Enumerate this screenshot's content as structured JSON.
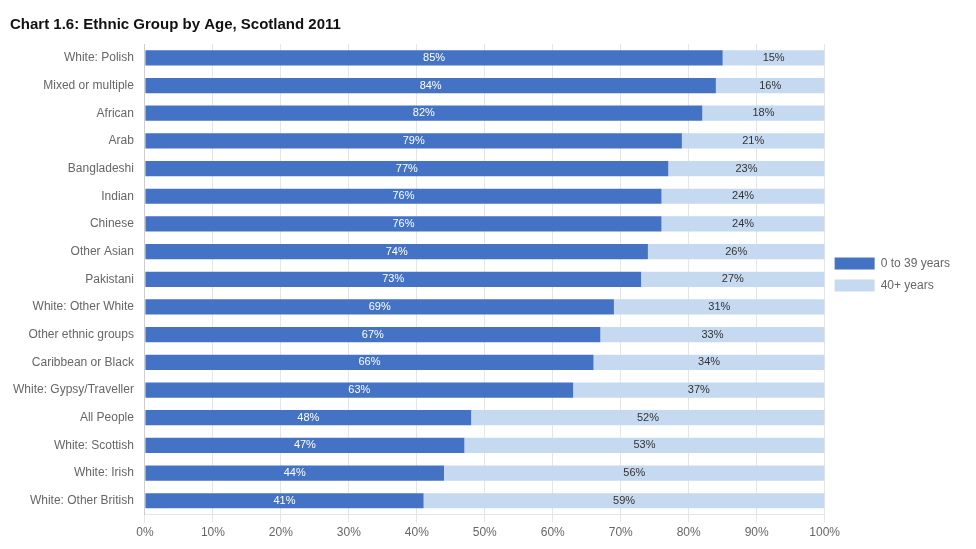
{
  "chart_data": {
    "type": "bar",
    "title": "Chart 1.6: Ethnic Group by Age, Scotland 2011",
    "orientation": "horizontal",
    "stacked": true,
    "categories": [
      "White: Polish",
      "Mixed or multiple",
      "African",
      "Arab",
      "Bangladeshi",
      "Indian",
      "Chinese",
      "Other Asian",
      "Pakistani",
      "White: Other White",
      "Other ethnic groups",
      "Caribbean or Black",
      "White: Gypsy/Traveller",
      "All People",
      "White: Scottish",
      "White: Irish",
      "White: Other British"
    ],
    "series": [
      {
        "name": "0 to 39 years",
        "color": "#4472C4",
        "values": [
          85,
          84,
          82,
          79,
          77,
          76,
          76,
          74,
          73,
          69,
          67,
          66,
          63,
          48,
          47,
          44,
          41
        ],
        "value_labels": [
          "85%",
          "84%",
          "82%",
          "79%",
          "77%",
          "76%",
          "76%",
          "74%",
          "73%",
          "69%",
          "67%",
          "66%",
          "63%",
          "48%",
          "47%",
          "44%",
          "41%"
        ]
      },
      {
        "name": "40+ years",
        "color": "#C5D9F1",
        "values": [
          15,
          16,
          18,
          21,
          23,
          24,
          24,
          26,
          27,
          31,
          33,
          34,
          37,
          52,
          53,
          56,
          59
        ],
        "value_labels": [
          "15%",
          "16%",
          "18%",
          "21%",
          "23%",
          "24%",
          "24%",
          "26%",
          "27%",
          "31%",
          "33%",
          "34%",
          "37%",
          "52%",
          "53%",
          "56%",
          "59%"
        ]
      }
    ],
    "xlim": [
      0,
      100
    ],
    "xticks": [
      {
        "value": 0,
        "label": "0%"
      },
      {
        "value": 10,
        "label": "10%"
      },
      {
        "value": 20,
        "label": "20%"
      },
      {
        "value": 30,
        "label": "30%"
      },
      {
        "value": 40,
        "label": "40%"
      },
      {
        "value": 50,
        "label": "50%"
      },
      {
        "value": 60,
        "label": "60%"
      },
      {
        "value": 70,
        "label": "70%"
      },
      {
        "value": 80,
        "label": "80%"
      },
      {
        "value": 90,
        "label": "90%"
      },
      {
        "value": 100,
        "label": "100%"
      }
    ],
    "grid": true,
    "legend": "right",
    "data_labels": true
  }
}
